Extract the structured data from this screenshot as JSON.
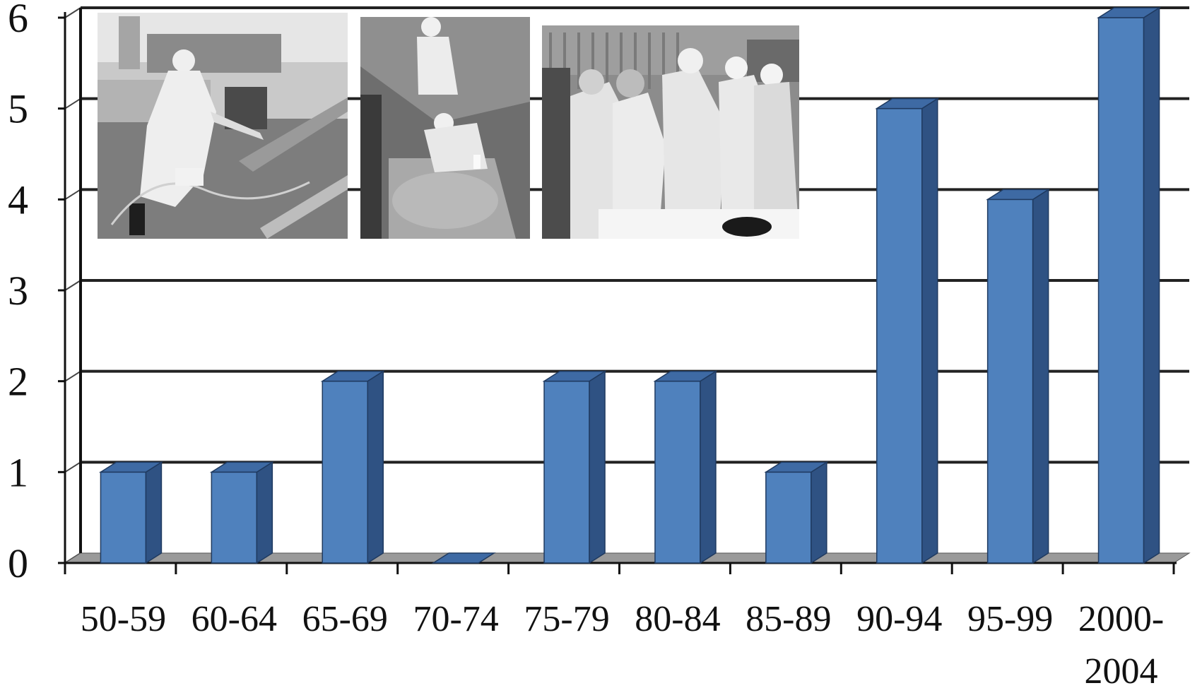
{
  "chart_data": {
    "type": "bar",
    "title": "",
    "xlabel": "",
    "ylabel": "",
    "categories": [
      "50-59",
      "60-64",
      "65-69",
      "70-74",
      "75-79",
      "80-84",
      "85-89",
      "90-94",
      "95-99",
      "2000-2004"
    ],
    "category_label_lines": [
      [
        "50-59"
      ],
      [
        "60-64"
      ],
      [
        "65-69"
      ],
      [
        "70-74"
      ],
      [
        "75-79"
      ],
      [
        "80-84"
      ],
      [
        "85-89"
      ],
      [
        "90-94"
      ],
      [
        "95-99"
      ],
      [
        "2000-",
        "2004"
      ]
    ],
    "values": [
      1,
      1,
      2,
      0,
      2,
      2,
      1,
      5,
      4,
      6
    ],
    "ylim": [
      0,
      6
    ],
    "yticks": [
      "0",
      "1",
      "2",
      "3",
      "4",
      "5",
      "6"
    ],
    "grid": true,
    "style": "3d-column",
    "colors": {
      "bar_front": "#4f81bd",
      "bar_side": "#2f5283",
      "bar_top": "#3e6aa4",
      "floor": "#9a9a9a",
      "gridline": "#222222"
    }
  },
  "photos": [
    {
      "name": "photo-worker-spraying",
      "desc_icon": "worker-protective-suit-icon"
    },
    {
      "name": "photo-water-sampling",
      "desc_icon": "water-sampling-icon"
    },
    {
      "name": "photo-group-suits",
      "desc_icon": "group-protective-suits-icon"
    }
  ]
}
